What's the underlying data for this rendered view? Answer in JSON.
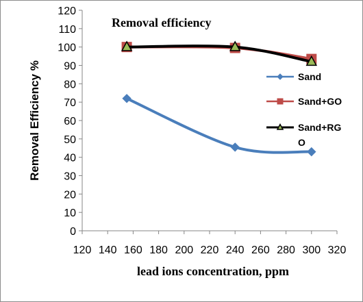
{
  "chart_data": {
    "type": "line",
    "title": "Removal efficiency",
    "xlabel": "lead ions concentration, ppm",
    "ylabel": "Removal Efficiency %",
    "xlim": [
      120,
      320
    ],
    "ylim": [
      0,
      120
    ],
    "x_ticks": [
      "120",
      "140",
      "160",
      "180",
      "200",
      "220",
      "240",
      "260",
      "280",
      "300",
      "320"
    ],
    "y_ticks": [
      "0",
      "10",
      "20",
      "30",
      "40",
      "50",
      "60",
      "70",
      "80",
      "90",
      "100",
      "110",
      "120"
    ],
    "grid": false,
    "legend_position": "right",
    "series": [
      {
        "name": "Sand",
        "color": "#4a7ebb",
        "marker": "diamond",
        "smooth": true,
        "x": [
          155,
          240,
          300
        ],
        "values": [
          72,
          45.5,
          43
        ]
      },
      {
        "name": "Sand+GO",
        "color": "#be4b48",
        "marker": "square",
        "smooth": true,
        "x": [
          155,
          240,
          300
        ],
        "values": [
          100,
          99.5,
          93.5
        ]
      },
      {
        "name": "Sand+RGO",
        "legend_lines": [
          "Sand+RG",
          "O"
        ],
        "color": "#000000",
        "marker": "triangle",
        "marker_fill": "#9bbb59",
        "smooth": true,
        "x": [
          155,
          240,
          300
        ],
        "values": [
          100,
          100,
          92
        ]
      }
    ]
  }
}
